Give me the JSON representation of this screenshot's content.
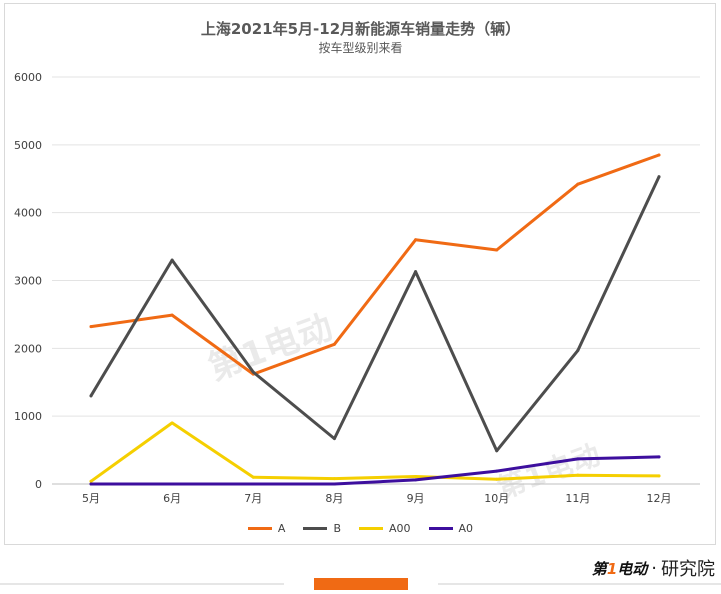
{
  "chart_data": {
    "type": "line",
    "title": "上海2021年5月-12月新能源车销量走势（辆）",
    "subtitle": "按车型级别来看",
    "categories": [
      "5月",
      "6月",
      "7月",
      "8月",
      "9月",
      "10月",
      "11月",
      "12月"
    ],
    "ylim": [
      0,
      6000
    ],
    "yticks": [
      0,
      1000,
      2000,
      3000,
      4000,
      5000,
      6000
    ],
    "grid": true,
    "legend_position": "bottom",
    "series": [
      {
        "name": "A",
        "color": "#f06a14",
        "values": [
          2320,
          2490,
          1620,
          2060,
          3600,
          3450,
          4420,
          4850
        ]
      },
      {
        "name": "B",
        "color": "#4d4d4d",
        "values": [
          1300,
          3300,
          1650,
          670,
          3130,
          490,
          1970,
          4530
        ]
      },
      {
        "name": "A00",
        "color": "#f5cf00",
        "values": [
          40,
          900,
          100,
          80,
          110,
          70,
          130,
          120
        ]
      },
      {
        "name": "A0",
        "color": "#3d0f9e",
        "values": [
          0,
          0,
          0,
          0,
          60,
          190,
          370,
          400
        ]
      }
    ]
  },
  "watermark": {
    "mark1": "第1电动",
    "mark2": "第1电动"
  },
  "brand": {
    "logo_prefix": "第",
    "logo_one": "1",
    "logo_suffix": "电动",
    "dot": "·",
    "name": "研究院"
  }
}
